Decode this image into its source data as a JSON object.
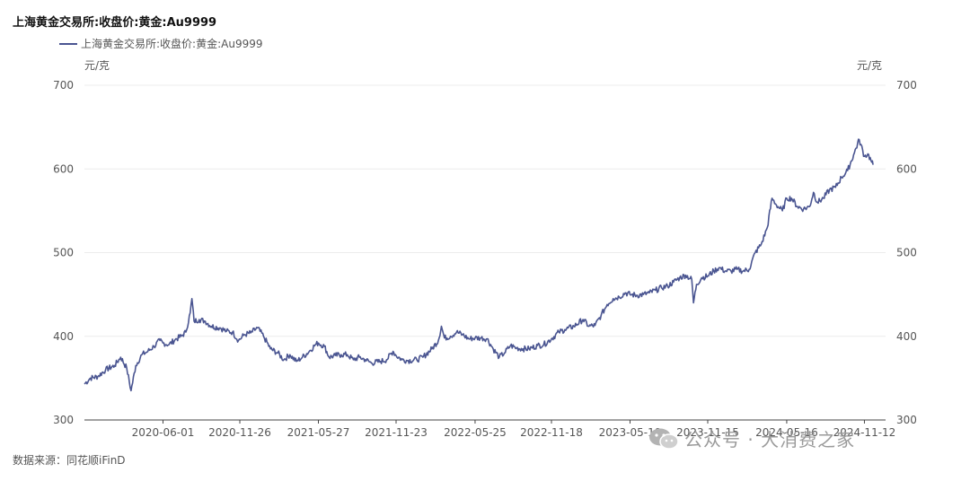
{
  "title": "上海黄金交易所:收盘价:黄金:Au9999",
  "legend": {
    "label": "上海黄金交易所:收盘价:黄金:Au9999",
    "color": "#4a5591"
  },
  "unit_left": "元/克",
  "unit_right": "元/克",
  "source": "数据来源：同花顺iFinD",
  "watermark": {
    "text": "公众号 · 大消费之家",
    "icon": "wechat-icon"
  },
  "chart_data": {
    "type": "line",
    "title": "上海黄金交易所:收盘价:黄金:Au9999",
    "ylabel": "元/克",
    "ylim": [
      300,
      700
    ],
    "yticks": [
      300,
      400,
      500,
      600,
      700
    ],
    "xlim": [
      "2019-12-02",
      "2024-12-31"
    ],
    "xtick_labels": [
      "2020-06-01",
      "2020-11-26",
      "2021-05-27",
      "2021-11-23",
      "2022-05-25",
      "2022-11-18",
      "2023-05-19",
      "2023-11-15",
      "2024-05-16",
      "2024-11-12"
    ],
    "grid": true,
    "legend_position": "top-left",
    "series": [
      {
        "name": "上海黄金交易所:收盘价:黄金:Au9999",
        "color": "#4a5591",
        "points": [
          [
            "2019-12-02",
            343
          ],
          [
            "2019-12-16",
            350
          ],
          [
            "2020-01-02",
            352
          ],
          [
            "2020-01-20",
            360
          ],
          [
            "2020-02-10",
            365
          ],
          [
            "2020-02-24",
            375
          ],
          [
            "2020-03-09",
            362
          ],
          [
            "2020-03-19",
            335
          ],
          [
            "2020-03-30",
            365
          ],
          [
            "2020-04-13",
            378
          ],
          [
            "2020-04-27",
            382
          ],
          [
            "2020-05-11",
            388
          ],
          [
            "2020-05-25",
            395
          ],
          [
            "2020-06-01",
            392
          ],
          [
            "2020-06-15",
            390
          ],
          [
            "2020-06-29",
            396
          ],
          [
            "2020-07-13",
            400
          ],
          [
            "2020-07-24",
            405
          ],
          [
            "2020-08-03",
            428
          ],
          [
            "2020-08-07",
            445
          ],
          [
            "2020-08-12",
            418
          ],
          [
            "2020-08-24",
            420
          ],
          [
            "2020-09-07",
            418
          ],
          [
            "2020-09-21",
            412
          ],
          [
            "2020-10-12",
            410
          ],
          [
            "2020-10-26",
            406
          ],
          [
            "2020-11-09",
            405
          ],
          [
            "2020-11-23",
            395
          ],
          [
            "2020-12-07",
            402
          ],
          [
            "2020-12-21",
            404
          ],
          [
            "2021-01-06",
            410
          ],
          [
            "2021-01-20",
            400
          ],
          [
            "2021-02-05",
            385
          ],
          [
            "2021-02-22",
            380
          ],
          [
            "2021-03-08",
            372
          ],
          [
            "2021-03-22",
            378
          ],
          [
            "2021-04-06",
            370
          ],
          [
            "2021-04-20",
            375
          ],
          [
            "2021-05-06",
            382
          ],
          [
            "2021-05-20",
            390
          ],
          [
            "2021-05-27",
            392
          ],
          [
            "2021-06-10",
            388
          ],
          [
            "2021-06-21",
            375
          ],
          [
            "2021-07-05",
            377
          ],
          [
            "2021-07-19",
            378
          ],
          [
            "2021-08-02",
            378
          ],
          [
            "2021-08-16",
            372
          ],
          [
            "2021-08-30",
            375
          ],
          [
            "2021-09-13",
            372
          ],
          [
            "2021-09-27",
            368
          ],
          [
            "2021-10-18",
            370
          ],
          [
            "2021-11-01",
            372
          ],
          [
            "2021-11-16",
            382
          ],
          [
            "2021-11-23",
            377
          ],
          [
            "2021-12-07",
            372
          ],
          [
            "2021-12-21",
            371
          ],
          [
            "2022-01-10",
            372
          ],
          [
            "2022-01-24",
            375
          ],
          [
            "2022-02-14",
            385
          ],
          [
            "2022-03-01",
            395
          ],
          [
            "2022-03-08",
            412
          ],
          [
            "2022-03-15",
            398
          ],
          [
            "2022-03-29",
            400
          ],
          [
            "2022-04-12",
            405
          ],
          [
            "2022-04-26",
            402
          ],
          [
            "2022-05-10",
            397
          ],
          [
            "2022-05-25",
            398
          ],
          [
            "2022-06-08",
            398
          ],
          [
            "2022-06-22",
            397
          ],
          [
            "2022-07-06",
            385
          ],
          [
            "2022-07-20",
            375
          ],
          [
            "2022-08-01",
            380
          ],
          [
            "2022-08-15",
            389
          ],
          [
            "2022-08-29",
            386
          ],
          [
            "2022-09-13",
            385
          ],
          [
            "2022-09-27",
            385
          ],
          [
            "2022-10-17",
            389
          ],
          [
            "2022-10-31",
            390
          ],
          [
            "2022-11-18",
            397
          ],
          [
            "2022-12-05",
            405
          ],
          [
            "2022-12-19",
            408
          ],
          [
            "2023-01-09",
            412
          ],
          [
            "2023-01-30",
            420
          ],
          [
            "2023-02-13",
            412
          ],
          [
            "2023-02-27",
            413
          ],
          [
            "2023-03-13",
            425
          ],
          [
            "2023-03-27",
            438
          ],
          [
            "2023-04-10",
            445
          ],
          [
            "2023-04-24",
            447
          ],
          [
            "2023-05-08",
            452
          ],
          [
            "2023-05-19",
            450
          ],
          [
            "2023-06-05",
            449
          ],
          [
            "2023-06-19",
            450
          ],
          [
            "2023-07-03",
            452
          ],
          [
            "2023-07-17",
            455
          ],
          [
            "2023-07-31",
            458
          ],
          [
            "2023-08-14",
            460
          ],
          [
            "2023-08-28",
            465
          ],
          [
            "2023-09-11",
            470
          ],
          [
            "2023-09-25",
            473
          ],
          [
            "2023-10-09",
            468
          ],
          [
            "2023-10-13",
            440
          ],
          [
            "2023-10-20",
            462
          ],
          [
            "2023-11-01",
            470
          ],
          [
            "2023-11-15",
            472
          ],
          [
            "2023-11-29",
            478
          ],
          [
            "2023-12-11",
            482
          ],
          [
            "2023-12-25",
            478
          ],
          [
            "2024-01-08",
            478
          ],
          [
            "2024-01-22",
            480
          ],
          [
            "2024-02-05",
            478
          ],
          [
            "2024-02-19",
            480
          ],
          [
            "2024-03-04",
            500
          ],
          [
            "2024-03-18",
            510
          ],
          [
            "2024-04-01",
            530
          ],
          [
            "2024-04-12",
            565
          ],
          [
            "2024-04-22",
            557
          ],
          [
            "2024-05-06",
            550
          ],
          [
            "2024-05-16",
            565
          ],
          [
            "2024-05-27",
            565
          ],
          [
            "2024-06-10",
            555
          ],
          [
            "2024-06-24",
            552
          ],
          [
            "2024-07-08",
            555
          ],
          [
            "2024-07-17",
            572
          ],
          [
            "2024-07-26",
            560
          ],
          [
            "2024-08-09",
            565
          ],
          [
            "2024-08-23",
            575
          ],
          [
            "2024-09-06",
            578
          ],
          [
            "2024-09-20",
            590
          ],
          [
            "2024-10-04",
            598
          ],
          [
            "2024-10-18",
            617
          ],
          [
            "2024-10-31",
            635
          ],
          [
            "2024-11-12",
            615
          ],
          [
            "2024-11-20",
            618
          ],
          [
            "2024-11-29",
            608
          ],
          [
            "2024-12-02",
            605
          ]
        ]
      }
    ]
  }
}
